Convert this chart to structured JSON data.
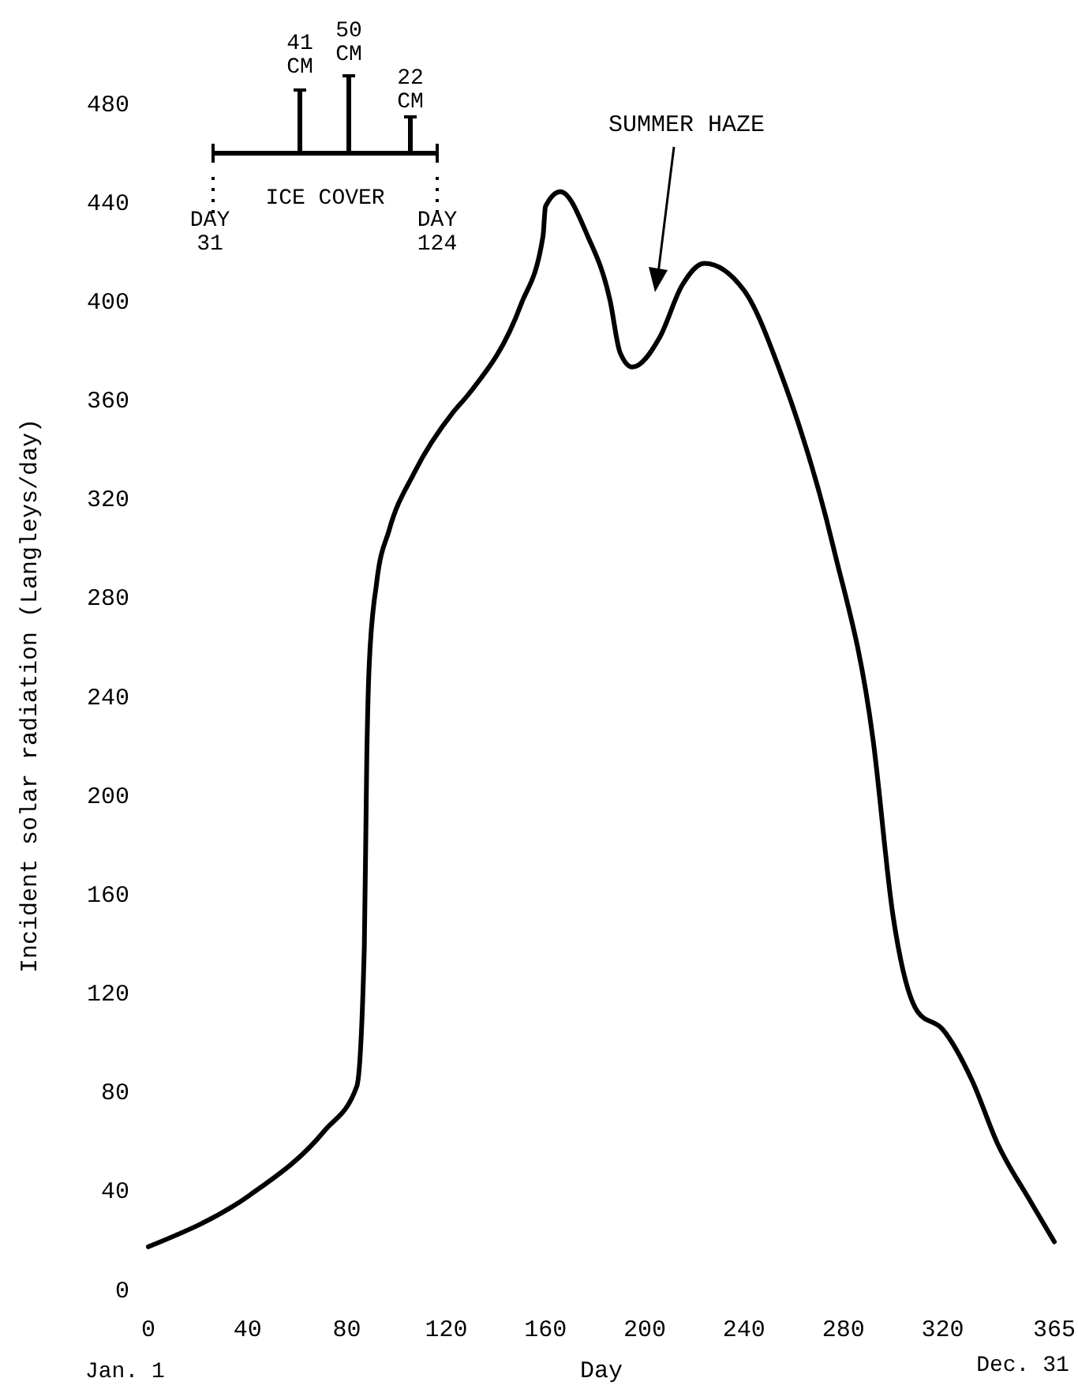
{
  "chart_data": {
    "type": "line",
    "xlabel": "Day",
    "ylabel": "Incident solar radiation (Langleys/day)",
    "xlim": [
      0,
      365
    ],
    "ylim": [
      0,
      480
    ],
    "xticks": [
      0,
      40,
      80,
      120,
      160,
      200,
      240,
      280,
      320,
      365
    ],
    "yticks": [
      0,
      40,
      80,
      120,
      160,
      200,
      240,
      280,
      320,
      360,
      400,
      440,
      480
    ],
    "grid": false,
    "marker": "none",
    "line_style": "solid",
    "series": [
      {
        "color": "#000000",
        "x": [
          0,
          41,
          71,
          84,
          87,
          88,
          89,
          92,
          97,
          107,
          123,
          129,
          150,
          159,
          160,
          166,
          177,
          186,
          190,
          195,
          206,
          215,
          224,
          240,
          255,
          276,
          292,
          300,
          310,
          320,
          332,
          342,
          355,
          365
        ],
        "values": [
          17,
          38,
          64,
          82,
          138,
          215,
          253,
          286,
          307,
          330,
          355,
          362,
          398,
          426,
          438,
          444,
          426,
          400,
          379,
          373,
          385,
          406,
          415,
          404,
          370,
          300,
          222,
          151,
          112,
          105,
          84,
          59,
          36,
          19
        ]
      }
    ],
    "annotations": [
      "SUMMER HAZE",
      "41 CM",
      "50 CM",
      "22 CM",
      "ICE COVER",
      "DAY 31",
      "DAY 124",
      "Jan. 1",
      "Dec. 31"
    ]
  }
}
